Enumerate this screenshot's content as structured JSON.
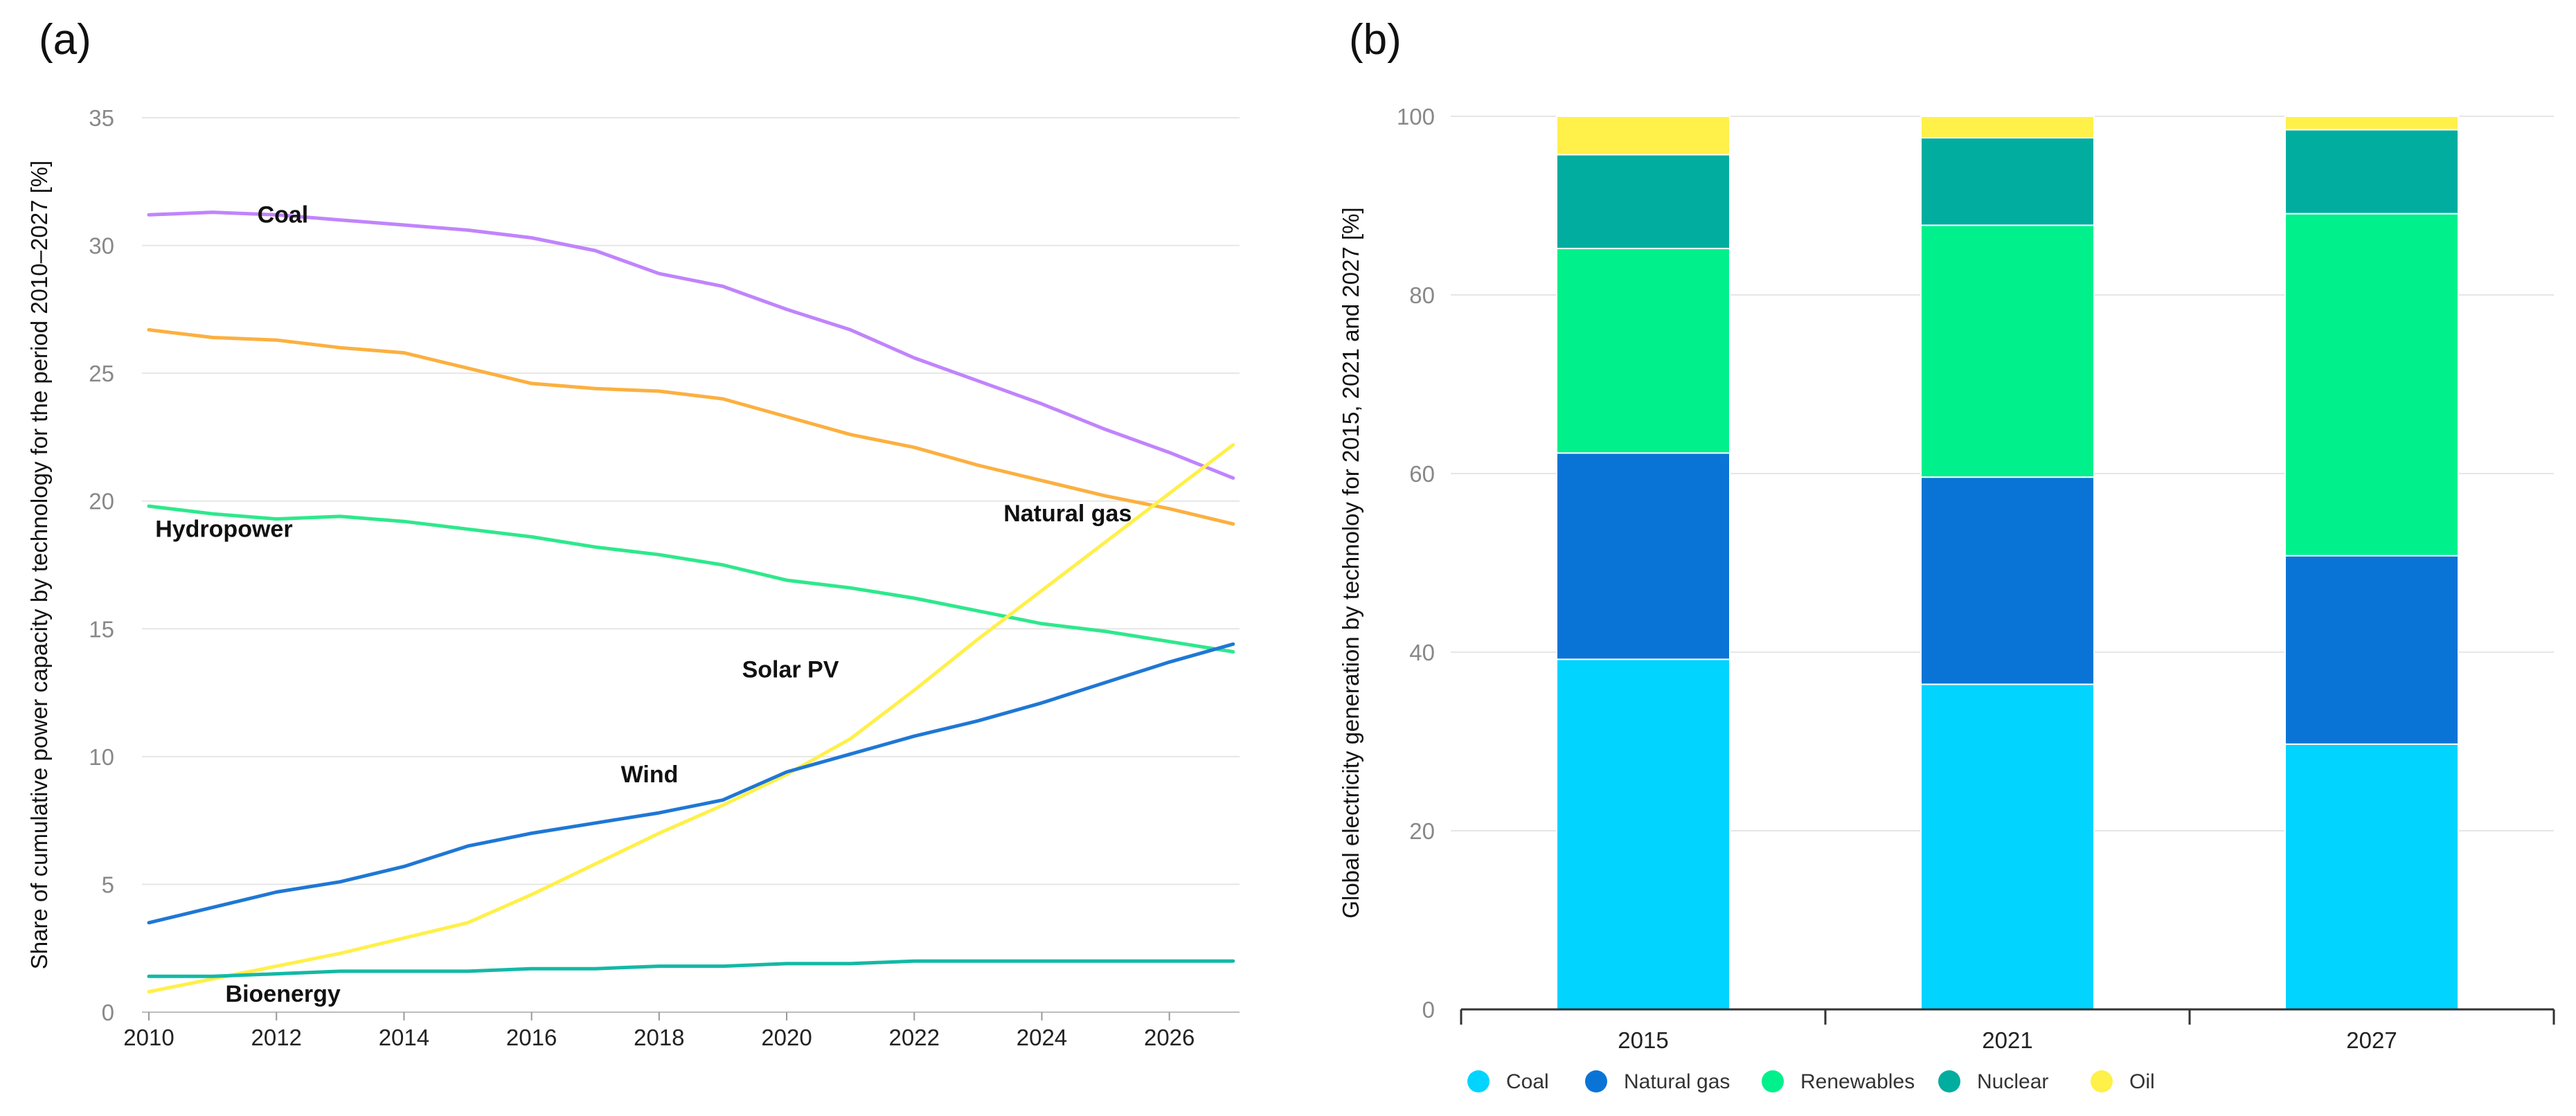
{
  "panels": {
    "a_label": "(a)",
    "b_label": "(b)"
  },
  "chart_data": [
    {
      "type": "line",
      "title": "",
      "xlabel": "",
      "ylabel": "Share of cumulative power capacity by technology for the period 2010–2027 [%]",
      "x": [
        2010,
        2011,
        2012,
        2013,
        2014,
        2015,
        2016,
        2017,
        2018,
        2019,
        2020,
        2021,
        2022,
        2023,
        2024,
        2025,
        2026,
        2027
      ],
      "xticks": [
        "2010",
        "2012",
        "2014",
        "2016",
        "2018",
        "2020",
        "2022",
        "2024",
        "2026"
      ],
      "yticks": [
        "0",
        "5",
        "10",
        "15",
        "20",
        "25",
        "30",
        "35"
      ],
      "xlim": [
        2010,
        2027.1
      ],
      "ylim": [
        0,
        35
      ],
      "grid": true,
      "series": [
        {
          "name": "Coal",
          "color": "#c084fc",
          "values": [
            31.2,
            31.3,
            31.2,
            31.0,
            30.8,
            30.6,
            30.3,
            29.8,
            28.9,
            28.4,
            27.5,
            26.7,
            25.6,
            24.7,
            23.8,
            22.8,
            21.9,
            20.9
          ]
        },
        {
          "name": "Natural gas",
          "color": "#fbb040",
          "values": [
            26.7,
            26.4,
            26.3,
            26.0,
            25.8,
            25.2,
            24.6,
            24.4,
            24.3,
            24.0,
            23.3,
            22.6,
            22.1,
            21.4,
            20.8,
            20.2,
            19.7,
            19.1
          ]
        },
        {
          "name": "Hydropower",
          "color": "#2ee88c",
          "values": [
            19.8,
            19.5,
            19.3,
            19.4,
            19.2,
            18.9,
            18.6,
            18.2,
            17.9,
            17.5,
            16.9,
            16.6,
            16.2,
            15.7,
            15.2,
            14.9,
            14.5,
            14.1
          ]
        },
        {
          "name": "Solar PV",
          "color": "#fff04a",
          "values": [
            0.8,
            1.3,
            1.8,
            2.3,
            2.9,
            3.5,
            4.6,
            5.8,
            7.0,
            8.1,
            9.3,
            10.7,
            12.6,
            14.6,
            16.5,
            18.4,
            20.3,
            22.2
          ]
        },
        {
          "name": "Wind",
          "color": "#1f77d4",
          "values": [
            3.5,
            4.1,
            4.7,
            5.1,
            5.7,
            6.5,
            7.0,
            7.4,
            7.8,
            8.3,
            9.4,
            10.1,
            10.8,
            11.4,
            12.1,
            12.9,
            13.7,
            14.4
          ]
        },
        {
          "name": "Bioenergy",
          "color": "#14b8a6",
          "values": [
            1.4,
            1.4,
            1.5,
            1.6,
            1.6,
            1.6,
            1.7,
            1.7,
            1.8,
            1.8,
            1.9,
            1.9,
            2.0,
            2.0,
            2.0,
            2.0,
            2.0,
            2.0
          ]
        }
      ]
    },
    {
      "type": "bar",
      "stacked": true,
      "title": "",
      "xlabel": "",
      "ylabel": "Global electricity generation by technoloy for 2015, 2021 and 2027 [%]",
      "categories": [
        "2015",
        "2021",
        "2027"
      ],
      "yticks": [
        "0",
        "20",
        "40",
        "60",
        "80",
        "100"
      ],
      "ylim": [
        0,
        100
      ],
      "grid": true,
      "legend_position": "bottom",
      "series": [
        {
          "name": "Coal",
          "color": "#00d4ff",
          "values": [
            39.2,
            36.4,
            29.7
          ]
        },
        {
          "name": "Natural gas",
          "color": "#0a74d6",
          "values": [
            23.1,
            23.2,
            21.1
          ]
        },
        {
          "name": "Renewables",
          "color": "#00f08c",
          "values": [
            22.9,
            28.2,
            38.3
          ]
        },
        {
          "name": "Nuclear",
          "color": "#00ad9f",
          "values": [
            10.5,
            9.8,
            9.4
          ]
        },
        {
          "name": "Oil",
          "color": "#fff04a",
          "values": [
            4.3,
            2.4,
            1.5
          ]
        }
      ]
    }
  ]
}
